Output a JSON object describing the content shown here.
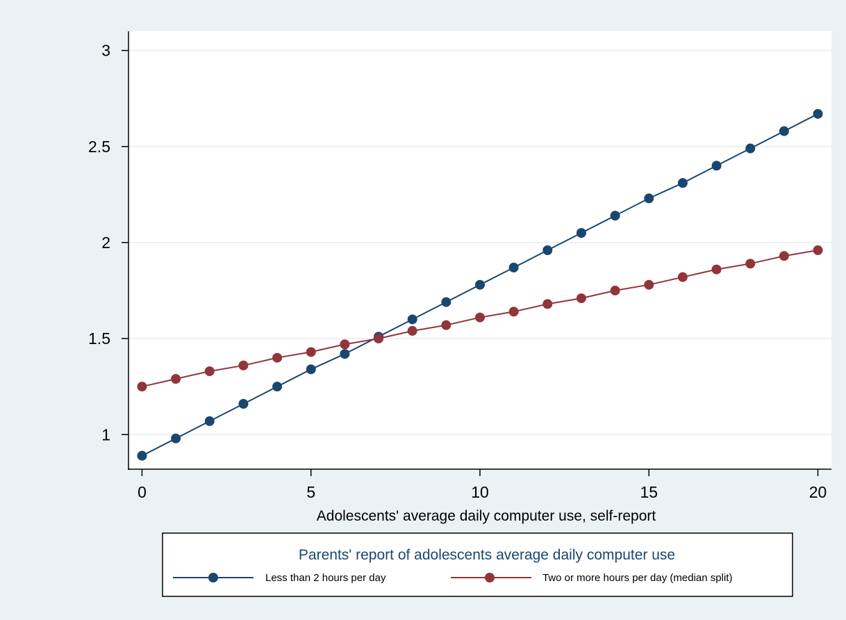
{
  "chart_data": {
    "type": "line",
    "title": "",
    "xlabel": "Adolescents' average daily computer use, self-report",
    "ylabel": "",
    "xlim": [
      -0.4,
      20.4
    ],
    "ylim": [
      0.82,
      3.1
    ],
    "xticks": [
      0,
      5,
      10,
      15,
      20
    ],
    "xtick_labels": [
      "0",
      "5",
      "10",
      "15",
      "20"
    ],
    "yticks": [
      1,
      1.5,
      2,
      2.5,
      3
    ],
    "ytick_labels": [
      "1",
      "1.5",
      "2",
      "2.5",
      "3"
    ],
    "grid": "horizontal",
    "legend_position": "bottom",
    "legend_title": "Parents' report of adolescents average daily computer use",
    "x": [
      0,
      1,
      2,
      3,
      4,
      5,
      6,
      7,
      8,
      9,
      10,
      11,
      12,
      13,
      14,
      15,
      16,
      17,
      18,
      19,
      20
    ],
    "series": [
      {
        "name": "Less than 2 hours per day",
        "color": "#1a476f",
        "values": [
          0.89,
          0.98,
          1.07,
          1.16,
          1.25,
          1.34,
          1.42,
          1.51,
          1.6,
          1.69,
          1.78,
          1.87,
          1.96,
          2.05,
          2.14,
          2.23,
          2.31,
          2.4,
          2.49,
          2.58,
          2.67
        ]
      },
      {
        "name": "Two or more hours per day (median split)",
        "color": "#90353b",
        "values": [
          1.25,
          1.29,
          1.33,
          1.36,
          1.4,
          1.43,
          1.47,
          1.5,
          1.54,
          1.57,
          1.61,
          1.64,
          1.68,
          1.71,
          1.75,
          1.78,
          1.82,
          1.86,
          1.89,
          1.93,
          1.96
        ]
      }
    ]
  },
  "colors": {
    "outer_background": "#eaf2f3",
    "plot_background": "#ffffff",
    "grid": "#eaf2f3",
    "legend_title": "#1a476f"
  }
}
